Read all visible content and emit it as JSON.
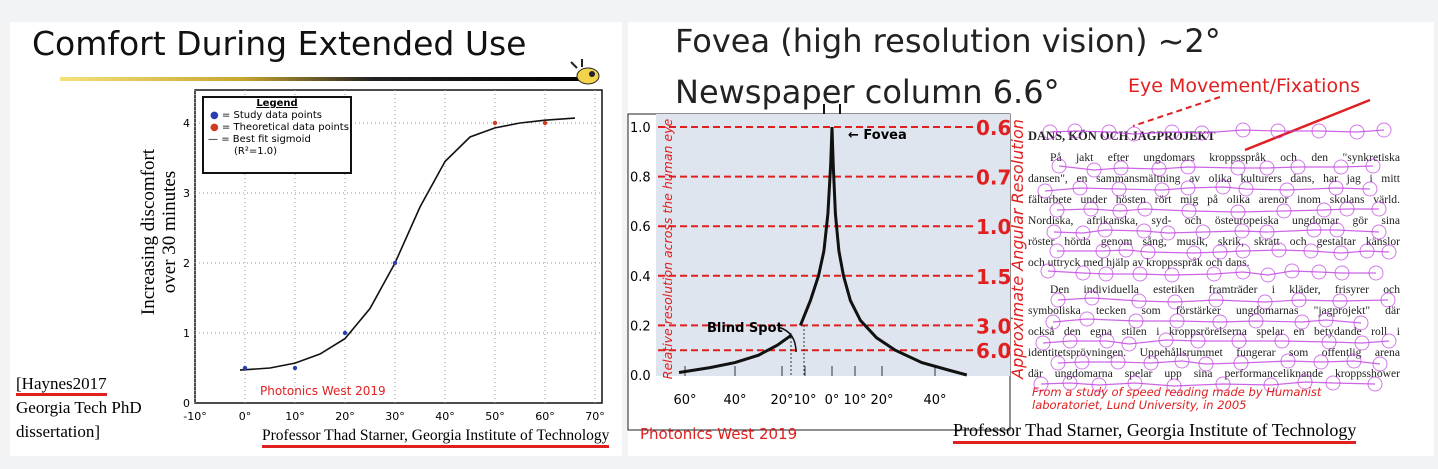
{
  "left_slide": {
    "title": "Comfort During Extended Use",
    "ylabel_line1": "Increasing discomfort",
    "ylabel_line2": "over 30 minutes",
    "legend": {
      "heading": "Legend",
      "study": "= Study data points",
      "theoretical": "= Theoretical data points",
      "fit": "= Best fit sigmoid",
      "r2": "(R²=1.0)"
    },
    "watermark": "Photonics West 2019",
    "citation": {
      "ref": "[Haynes2017",
      "line2": "Georgia Tech PhD",
      "line3": "dissertation]"
    },
    "footer": "Professor Thad Starner, Georgia Institute of Technology"
  },
  "right_slide": {
    "title_line1": "Fovea (high resolution vision) ~2°",
    "title_line2": "Newspaper column 6.6°",
    "eye_movement_label": "Eye Movement/Fixations",
    "watermark": "Photonics West 2019",
    "footer": "Professor Thad Starner, Georgia Institute of Technology",
    "reading_study": {
      "heading": "DANS, KÖN OCH JAGPROJEKT",
      "paragraph1": [
        "På jakt efter ungdomars kroppsspråk och den \"synkretiska",
        "dansen\", en sammansmältning av olika kulturers dans, har jag i mitt",
        "fältarbete under hösten rört mig på olika arenor inom skolans värld.",
        "Nordiska, afrikanska, syd- och östeuropeiska ungdomar gör sina",
        "röster hörda genom sång, musik, skrik, skratt och gestaltar känslor",
        "och uttryck med hjälp av kroppsspråk och dans."
      ],
      "paragraph2": [
        "Den individuella estetiken framträder i kläder, frisyrer och",
        "symboliska tecken som förstärker ungdomarnas \"jagprojekt\" där",
        "också den egna stilen i kroppsrörelserna spelar en betydande roll i",
        "identitetsprövningen. Uppehållsrummet fungerar som offentlig arena",
        "där ungdomarna spelar upp sina performanceliknande kroppsshower"
      ],
      "source_line1": "From a study of speed reading made by Humanist",
      "source_line2": "laboratoriet, Lund University, in 2005"
    }
  },
  "colors": {
    "accent_red": "#e02020",
    "study_point": "#2a3fb0",
    "theoretical_point": "#d03a20",
    "fixation": "#c040e0",
    "plot_bg": "#dfe5ee"
  },
  "chart_data": [
    {
      "type": "scatter",
      "title": "Comfort During Extended Use",
      "ylabel": "Increasing discomfort over 30 minutes",
      "xlim": [
        -10,
        70
      ],
      "ylim": [
        0,
        4.3
      ],
      "x_ticks": [
        "-10°",
        "0°",
        "10°",
        "20°",
        "30°",
        "40°",
        "50°",
        "60°",
        "70°"
      ],
      "y_ticks": [
        "0",
        "1",
        "2",
        "3",
        "4"
      ],
      "grid": true,
      "legend": "top-left",
      "series": [
        {
          "name": "Study data points",
          "type": "scatter",
          "x": [
            0,
            10,
            20,
            30
          ],
          "y": [
            0.5,
            0.5,
            1.0,
            2.0
          ]
        },
        {
          "name": "Theoretical data points",
          "type": "scatter",
          "x": [
            50,
            60
          ],
          "y": [
            4.0,
            4.0
          ]
        },
        {
          "name": "Best fit sigmoid",
          "type": "line",
          "x": [
            -1,
            5,
            10,
            15,
            20,
            25,
            30,
            35,
            40,
            45,
            50,
            55,
            60,
            66
          ],
          "y": [
            0.47,
            0.5,
            0.57,
            0.7,
            0.92,
            1.35,
            2.0,
            2.8,
            3.45,
            3.8,
            3.93,
            4.0,
            4.04,
            4.07
          ]
        }
      ]
    },
    {
      "type": "line",
      "ylabel": "Relative resolution across the human eye",
      "y2label": "Approximate Angular Resolution",
      "ylim": [
        0,
        1.0
      ],
      "y_ticks": [
        "0.0",
        "0.2",
        "0.4",
        "0.6",
        "0.8",
        "1.0"
      ],
      "x_ticks": [
        {
          "v": -60,
          "label": "60°"
        },
        {
          "v": -40,
          "label": "40°"
        },
        {
          "v": -20,
          "label": "20°"
        },
        {
          "v": -10,
          "label": "10°"
        },
        {
          "v": 0,
          "label": "0°"
        },
        {
          "v": 10,
          "label": "10°"
        },
        {
          "v": 20,
          "label": "20°"
        },
        {
          "v": 40,
          "label": "40°"
        }
      ],
      "reference_lines": [
        {
          "y": 1.0,
          "label": "0.6"
        },
        {
          "y": 0.8,
          "label": "0.7"
        },
        {
          "y": 0.6,
          "label": "1.0"
        },
        {
          "y": 0.4,
          "label": "1.5"
        },
        {
          "y": 0.2,
          "label": "3.0"
        },
        {
          "y": 0.1,
          "label": "6.0"
        }
      ],
      "annotations": [
        "Fovea",
        "Blind Spot"
      ],
      "series": [
        {
          "x": [
            -65,
            -50,
            -40,
            -30,
            -22,
            -16
          ],
          "y": [
            0.01,
            0.03,
            0.05,
            0.08,
            0.12,
            0.16
          ]
        },
        {
          "x": [
            -12,
            -8,
            -5,
            -3,
            -1.5,
            -0.5,
            0
          ],
          "y": [
            0.2,
            0.3,
            0.4,
            0.5,
            0.65,
            0.85,
            1.0
          ]
        },
        {
          "x": [
            0,
            0.5,
            1.5,
            3,
            5,
            8,
            12,
            18,
            25,
            35,
            45,
            52
          ],
          "y": [
            1.0,
            0.85,
            0.65,
            0.5,
            0.4,
            0.3,
            0.22,
            0.15,
            0.1,
            0.05,
            0.02,
            0.0
          ]
        }
      ]
    }
  ]
}
